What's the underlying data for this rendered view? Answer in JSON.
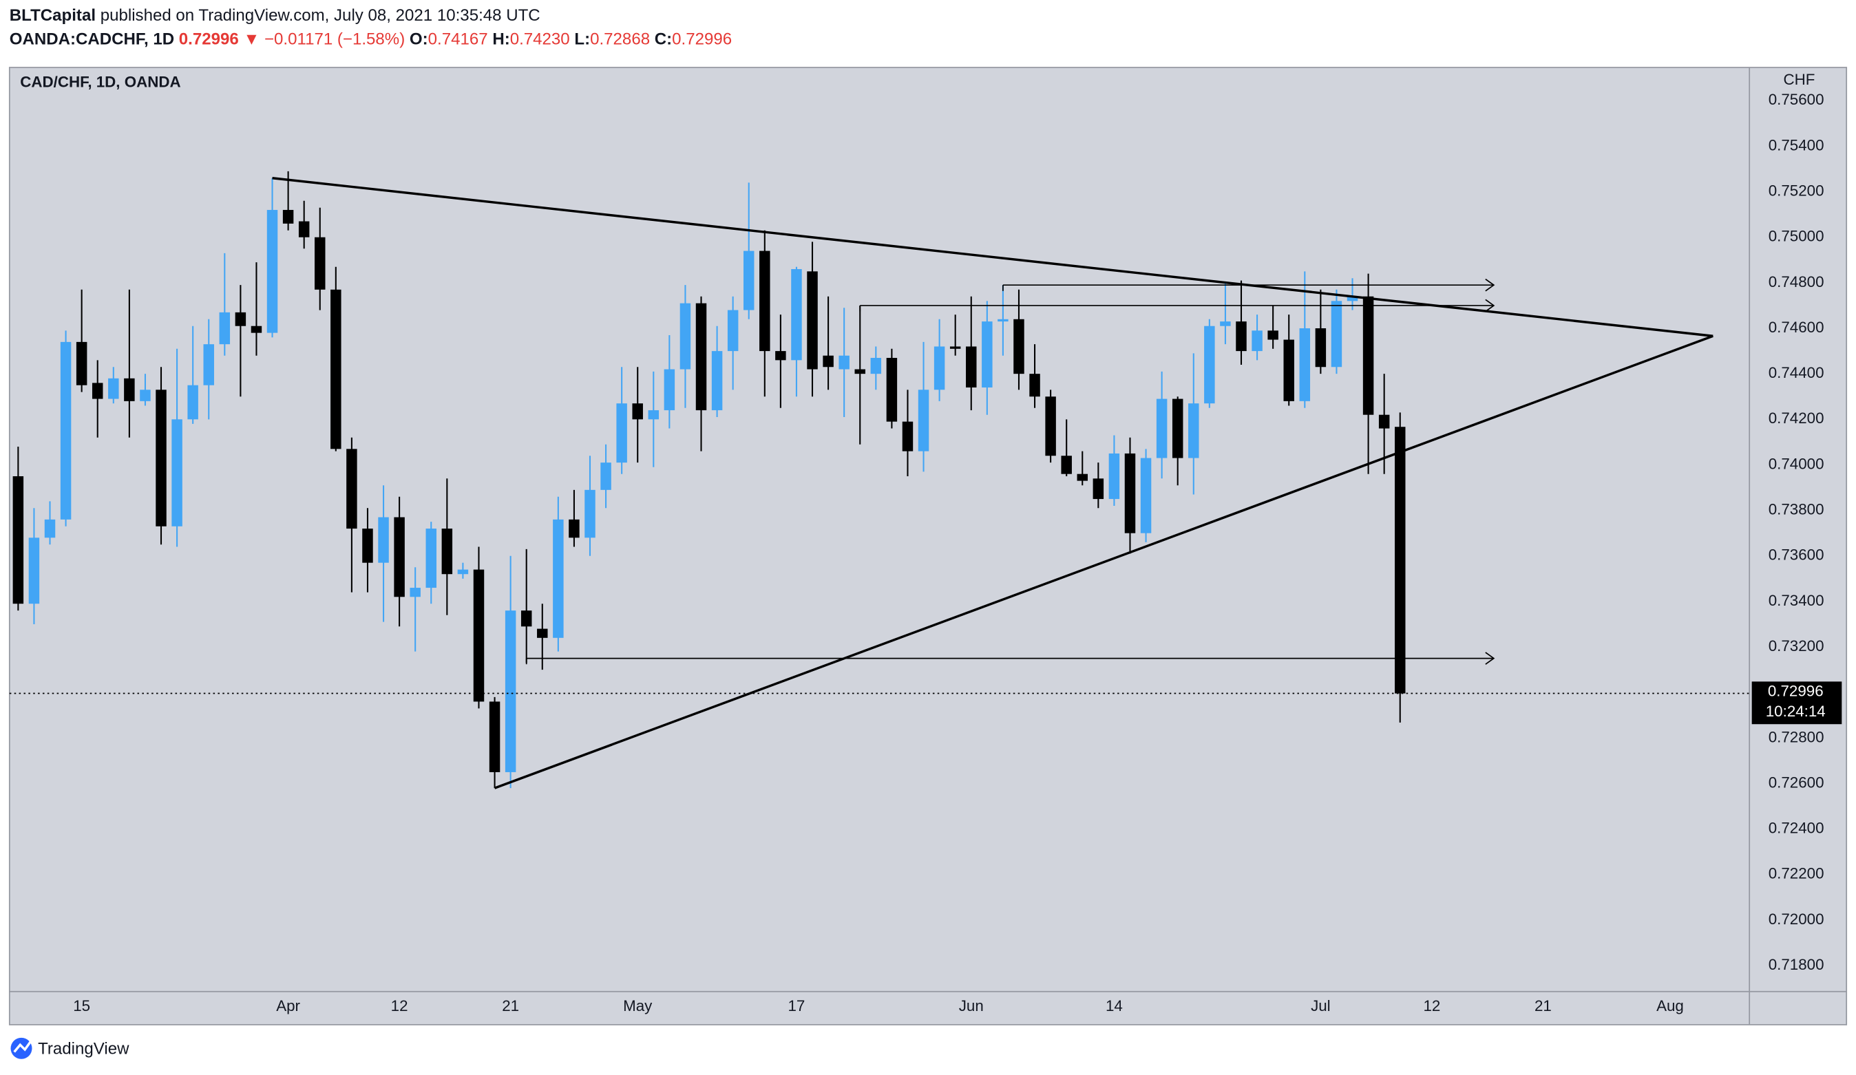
{
  "header": {
    "publisher": "BLTCapital",
    "published_text": "published on TradingView.com, July 08, 2021 10:35:48 UTC"
  },
  "quote": {
    "symbol": "OANDA:CADCHF, 1D",
    "last": "0.72996",
    "arrow": "▼",
    "change": "−0.01171 (−1.58%)",
    "fields": [
      {
        "label": "O:",
        "value": "0.74167"
      },
      {
        "label": "H:",
        "value": "0.74230"
      },
      {
        "label": "L:",
        "value": "0.72868"
      },
      {
        "label": "C:",
        "value": "0.72996"
      }
    ]
  },
  "footer": {
    "brand": "TradingView"
  },
  "chart_data": {
    "type": "candlestick",
    "title": "CAD/CHF, 1D, OANDA",
    "y_axis_label": "CHF",
    "up_color": "#42a5f5",
    "down_color": "#000000",
    "background": "#d1d4dc",
    "grid": false,
    "categories": [
      null,
      null,
      null,
      null,
      "15",
      null,
      null,
      null,
      null,
      null,
      null,
      null,
      null,
      null,
      null,
      null,
      null,
      "Apr",
      null,
      null,
      null,
      null,
      null,
      null,
      "12",
      null,
      null,
      null,
      null,
      null,
      null,
      "21",
      null,
      null,
      null,
      null,
      null,
      null,
      null,
      "May",
      null,
      null,
      null,
      null,
      null,
      null,
      null,
      null,
      null,
      "17",
      null,
      null,
      null,
      null,
      null,
      null,
      null,
      null,
      null,
      null,
      "Jun",
      null,
      null,
      null,
      null,
      null,
      null,
      null,
      null,
      "14",
      null,
      null,
      null,
      null,
      null,
      null,
      null,
      null,
      null,
      null,
      null,
      null,
      "Jul",
      null,
      null,
      null,
      null,
      null,
      null,
      "12",
      null,
      null,
      null,
      null,
      null,
      null,
      "21",
      null,
      null,
      null,
      null,
      null,
      null,
      null,
      "Aug",
      null,
      null,
      null,
      null
    ],
    "open": [
      0.7395,
      0.7339,
      0.7368,
      0.7376,
      0.7454,
      0.7436,
      0.7429,
      0.7438,
      0.7428,
      0.7433,
      0.7373,
      0.742,
      0.7435,
      0.7453,
      0.7467,
      0.7461,
      0.7458,
      0.7512,
      0.7507,
      0.75,
      0.7477,
      0.7407,
      0.7372,
      0.7357,
      0.7377,
      0.7342,
      0.7346,
      0.7372,
      0.7352,
      0.7354,
      0.7296,
      0.7265,
      0.7336,
      0.7328,
      0.7324,
      0.7376,
      0.7368,
      0.7389,
      0.7401,
      0.7427,
      0.742,
      0.7424,
      0.7442,
      0.7471,
      0.7424,
      0.745,
      0.7468,
      0.7494,
      0.745,
      0.7446,
      0.7485,
      0.7448,
      0.7442,
      0.7442,
      0.744,
      0.7447,
      0.7419,
      0.7406,
      0.7433,
      0.7452,
      0.7452,
      0.7434,
      0.7463,
      0.7464,
      0.744,
      0.743,
      0.7404,
      0.7396,
      0.7394,
      0.7385,
      0.7405,
      0.737,
      0.7403,
      0.7429,
      0.7403,
      0.7427,
      0.7461,
      0.7463,
      0.745,
      0.7459,
      0.7455,
      0.7428,
      0.746,
      0.7443,
      0.7472,
      0.7474,
      0.7422,
      0.74167,
      null,
      null,
      null,
      null,
      null,
      null,
      null,
      null,
      null,
      null,
      null,
      null,
      null,
      null,
      null,
      null,
      null,
      null,
      null,
      null,
      null
    ],
    "high": [
      0.7408,
      0.7381,
      0.7384,
      0.7459,
      0.7477,
      0.7446,
      0.7443,
      0.7477,
      0.744,
      0.7443,
      0.7451,
      0.7461,
      0.7464,
      0.7493,
      0.7479,
      0.7489,
      0.7526,
      0.7529,
      0.7516,
      0.7513,
      0.7487,
      0.7412,
      0.7381,
      0.7391,
      0.7386,
      0.7355,
      0.7375,
      0.7394,
      0.7357,
      0.7364,
      0.7298,
      0.736,
      0.7363,
      0.7339,
      0.7386,
      0.7389,
      0.7404,
      0.7409,
      0.7443,
      0.7443,
      0.7441,
      0.7457,
      0.7479,
      0.7474,
      0.7461,
      0.7474,
      0.7524,
      0.7503,
      0.7466,
      0.7487,
      0.7498,
      0.7474,
      0.7469,
      0.747,
      0.7452,
      0.7451,
      0.7433,
      0.7454,
      0.7464,
      0.7466,
      0.7474,
      0.7472,
      0.7479,
      0.7477,
      0.7453,
      0.7433,
      0.742,
      0.7406,
      0.7401,
      0.7413,
      0.7412,
      0.7407,
      0.7441,
      0.743,
      0.7449,
      0.7464,
      0.748,
      0.7481,
      0.7466,
      0.747,
      0.7466,
      0.7485,
      0.7477,
      0.7477,
      0.7482,
      0.7484,
      0.744,
      0.7423,
      null,
      null,
      null,
      null,
      null,
      null,
      null,
      null,
      null,
      null,
      null,
      null,
      null,
      null,
      null,
      null,
      null,
      null,
      null,
      null,
      null
    ],
    "low": [
      0.7336,
      0.733,
      0.7365,
      0.7373,
      0.7432,
      0.7412,
      0.7427,
      0.7412,
      0.7426,
      0.7365,
      0.7364,
      0.7418,
      0.742,
      0.7448,
      0.743,
      0.7448,
      0.7456,
      0.7503,
      0.7495,
      0.7468,
      0.7406,
      0.7344,
      0.7344,
      0.7331,
      0.7329,
      0.7318,
      0.7339,
      0.7334,
      0.735,
      0.7293,
      0.7258,
      0.7258,
      0.7313,
      0.731,
      0.7318,
      0.7364,
      0.736,
      0.7381,
      0.7396,
      0.7401,
      0.7399,
      0.7416,
      0.7425,
      0.7406,
      0.7421,
      0.7433,
      0.7464,
      0.743,
      0.7425,
      0.743,
      0.743,
      0.7433,
      0.7421,
      0.7409,
      0.7433,
      0.7416,
      0.7395,
      0.7397,
      0.7428,
      0.7448,
      0.7424,
      0.7422,
      0.7448,
      0.7433,
      0.7425,
      0.7401,
      0.7395,
      0.7391,
      0.7381,
      0.7382,
      0.7361,
      0.7366,
      0.7394,
      0.7391,
      0.7387,
      0.7425,
      0.7453,
      0.7444,
      0.7446,
      0.7451,
      0.7426,
      0.7425,
      0.744,
      0.744,
      0.7468,
      0.7396,
      0.7396,
      0.72868,
      null,
      null,
      null,
      null,
      null,
      null,
      null,
      null,
      null,
      null,
      null,
      null,
      null,
      null,
      null,
      null,
      null,
      null,
      null,
      null,
      null
    ],
    "close": [
      0.7339,
      0.7368,
      0.7376,
      0.7454,
      0.7435,
      0.7429,
      0.7438,
      0.7428,
      0.7433,
      0.7373,
      0.742,
      0.7435,
      0.7453,
      0.7467,
      0.7461,
      0.7458,
      0.7512,
      0.7506,
      0.75,
      0.7477,
      0.7407,
      0.7372,
      0.7357,
      0.7377,
      0.7342,
      0.7346,
      0.7372,
      0.7352,
      0.7354,
      0.7296,
      0.7265,
      0.7336,
      0.7329,
      0.7324,
      0.7376,
      0.7368,
      0.7389,
      0.7401,
      0.7427,
      0.742,
      0.7424,
      0.7442,
      0.7471,
      0.7424,
      0.745,
      0.7468,
      0.7494,
      0.745,
      0.7446,
      0.7486,
      0.7442,
      0.7443,
      0.7448,
      0.744,
      0.7447,
      0.7419,
      0.7406,
      0.7433,
      0.7452,
      0.7451,
      0.7434,
      0.7463,
      0.7464,
      0.744,
      0.743,
      0.7404,
      0.7396,
      0.7393,
      0.7385,
      0.7405,
      0.737,
      0.7403,
      0.7429,
      0.7403,
      0.7427,
      0.7461,
      0.7463,
      0.745,
      0.7459,
      0.7455,
      0.7428,
      0.746,
      0.7443,
      0.7472,
      0.7474,
      0.7422,
      0.7416,
      0.72996,
      null,
      null,
      null,
      null,
      null,
      null,
      null,
      null,
      null,
      null,
      null,
      null,
      null,
      null,
      null,
      null,
      null,
      null,
      null,
      null,
      null
    ],
    "ylim": [
      0.71686,
      0.75746
    ],
    "yticks": [
      {
        "value": 0.756,
        "label": "0.75600"
      },
      {
        "value": 0.754,
        "label": "0.75400"
      },
      {
        "value": 0.752,
        "label": "0.75200"
      },
      {
        "value": 0.75,
        "label": "0.75000"
      },
      {
        "value": 0.748,
        "label": "0.74800"
      },
      {
        "value": 0.746,
        "label": "0.74600"
      },
      {
        "value": 0.744,
        "label": "0.74400"
      },
      {
        "value": 0.742,
        "label": "0.74200"
      },
      {
        "value": 0.74,
        "label": "0.74000"
      },
      {
        "value": 0.738,
        "label": "0.73800"
      },
      {
        "value": 0.736,
        "label": "0.73600"
      },
      {
        "value": 0.734,
        "label": "0.73400"
      },
      {
        "value": 0.732,
        "label": "0.73200"
      },
      {
        "value": 0.73,
        "label": "0.73000"
      },
      {
        "value": 0.728,
        "label": "0.72800"
      },
      {
        "value": 0.726,
        "label": "0.72600"
      },
      {
        "value": 0.724,
        "label": "0.72400"
      },
      {
        "value": 0.722,
        "label": "0.72200"
      },
      {
        "value": 0.72,
        "label": "0.72000"
      },
      {
        "value": 0.718,
        "label": "0.71800"
      }
    ],
    "last_price": 0.72996,
    "countdown": "10:24:14",
    "trend_lines": [
      {
        "x": [
          16,
          106.7
        ],
        "y": [
          0.7526,
          0.74566
        ]
      },
      {
        "x": [
          30,
          106.7
        ],
        "y": [
          0.7258,
          0.74566
        ]
      }
    ],
    "arrows": [
      {
        "x": [
          53,
          92.9
        ],
        "y": [
          0.747,
          0.747
        ]
      },
      {
        "x": [
          62,
          92.9
        ],
        "y": [
          0.7479,
          0.7479
        ]
      },
      {
        "x": [
          32,
          92.9
        ],
        "y": [
          0.7315,
          0.7315
        ]
      }
    ]
  }
}
